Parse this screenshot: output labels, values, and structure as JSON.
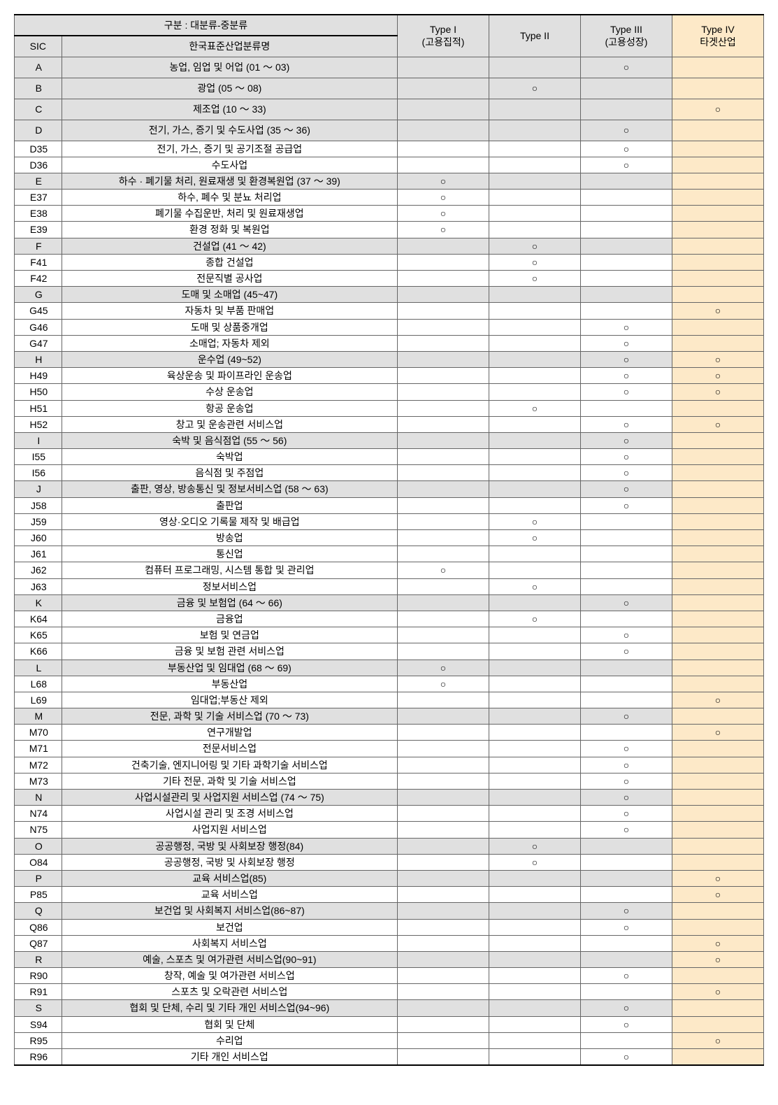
{
  "colors": {
    "header_bg": "#e0e0e0",
    "major_bg": "#e0e0e0",
    "sub_bg": "#ffffff",
    "type4_bg": "#fde9c8",
    "border": "#666666",
    "border_heavy": "#000000",
    "text": "#000000",
    "circle_glyph": "○"
  },
  "typography": {
    "font_family": "Malgun Gothic",
    "header_fontsize": 14,
    "row_fontsize": 14
  },
  "columns": {
    "sic_width": 62,
    "name_width": 440,
    "type_width": 120
  },
  "header": {
    "top_merge": "구분 : 대분류-중분류",
    "sic": "SIC",
    "name": "한국표준산업분류명",
    "t1_a": "Type I",
    "t1_b": "(고용집적)",
    "t2": "Type II",
    "t3_a": "Type III",
    "t3_b": "(고용성장)",
    "t4_a": "Type IV",
    "t4_b": "타겟산업"
  },
  "rows": [
    {
      "sic": "A",
      "name": "농업, 임업 및 어업 (01 ～ 03)",
      "t1": "",
      "t2": "",
      "t3": "○",
      "t4": "",
      "major": true,
      "lg": true
    },
    {
      "sic": "B",
      "name": "광업 (05 ～ 08)",
      "t1": "",
      "t2": "○",
      "t3": "",
      "t4": "",
      "major": true,
      "lg": true
    },
    {
      "sic": "C",
      "name": "제조업 (10 ～ 33)",
      "t1": "",
      "t2": "",
      "t3": "",
      "t4": "○",
      "major": true,
      "lg": true
    },
    {
      "sic": "D",
      "name": "전기, 가스, 증기 및 수도사업 (35 ～ 36)",
      "t1": "",
      "t2": "",
      "t3": "○",
      "t4": "",
      "major": true,
      "lg": true
    },
    {
      "sic": "D35",
      "name": "전기, 가스, 증기 및 공기조절 공급업",
      "t1": "",
      "t2": "",
      "t3": "○",
      "t4": "",
      "major": false
    },
    {
      "sic": "D36",
      "name": "수도사업",
      "t1": "",
      "t2": "",
      "t3": "○",
      "t4": "",
      "major": false
    },
    {
      "sic": "E",
      "name": "하수 · 폐기물 처리, 원료재생 및 환경복원업 (37 ～ 39)",
      "t1": "○",
      "t2": "",
      "t3": "",
      "t4": "",
      "major": true
    },
    {
      "sic": "E37",
      "name": "하수, 폐수 및 분뇨 처리업",
      "t1": "○",
      "t2": "",
      "t3": "",
      "t4": "",
      "major": false
    },
    {
      "sic": "E38",
      "name": "폐기물 수집운반, 처리 및 원료재생업",
      "t1": "○",
      "t2": "",
      "t3": "",
      "t4": "",
      "major": false
    },
    {
      "sic": "E39",
      "name": "환경 정화 및 복원업",
      "t1": "○",
      "t2": "",
      "t3": "",
      "t4": "",
      "major": false
    },
    {
      "sic": "F",
      "name": "건설업 (41 ～ 42)",
      "t1": "",
      "t2": "○",
      "t3": "",
      "t4": "",
      "major": true
    },
    {
      "sic": "F41",
      "name": "종합 건설업",
      "t1": "",
      "t2": "○",
      "t3": "",
      "t4": "",
      "major": false
    },
    {
      "sic": "F42",
      "name": "전문직별 공사업",
      "t1": "",
      "t2": "○",
      "t3": "",
      "t4": "",
      "major": false
    },
    {
      "sic": "G",
      "name": "도매 및 소매업 (45~47)",
      "t1": "",
      "t2": "",
      "t3": "",
      "t4": "",
      "major": true
    },
    {
      "sic": "G45",
      "name": "자동차 및 부품 판매업",
      "t1": "",
      "t2": "",
      "t3": "",
      "t4": "○",
      "major": false
    },
    {
      "sic": "G46",
      "name": "도매 및 상품중개업",
      "t1": "",
      "t2": "",
      "t3": "○",
      "t4": "",
      "major": false
    },
    {
      "sic": "G47",
      "name": "소매업; 자동차 제외",
      "t1": "",
      "t2": "",
      "t3": "○",
      "t4": "",
      "major": false
    },
    {
      "sic": "H",
      "name": "운수업 (49~52)",
      "t1": "",
      "t2": "",
      "t3": "○",
      "t4": "○",
      "major": true
    },
    {
      "sic": "H49",
      "name": "육상운송 및 파이프라인 운송업",
      "t1": "",
      "t2": "",
      "t3": "○",
      "t4": "○",
      "major": false
    },
    {
      "sic": "H50",
      "name": "수상 운송업",
      "t1": "",
      "t2": "",
      "t3": "○",
      "t4": "○",
      "major": false
    },
    {
      "sic": "H51",
      "name": "항공 운송업",
      "t1": "",
      "t2": "○",
      "t3": "",
      "t4": "",
      "major": false
    },
    {
      "sic": "H52",
      "name": "창고 및 운송관련 서비스업",
      "t1": "",
      "t2": "",
      "t3": "○",
      "t4": "○",
      "major": false
    },
    {
      "sic": "I",
      "name": "숙박 및 음식점업 (55 ～ 56)",
      "t1": "",
      "t2": "",
      "t3": "○",
      "t4": "",
      "major": true
    },
    {
      "sic": "I55",
      "name": "숙박업",
      "t1": "",
      "t2": "",
      "t3": "○",
      "t4": "",
      "major": false
    },
    {
      "sic": "I56",
      "name": "음식점 및 주점업",
      "t1": "",
      "t2": "",
      "t3": "○",
      "t4": "",
      "major": false
    },
    {
      "sic": "J",
      "name": "출판, 영상, 방송통신 및 정보서비스업 (58 ～ 63)",
      "t1": "",
      "t2": "",
      "t3": "○",
      "t4": "",
      "major": true
    },
    {
      "sic": "J58",
      "name": "출판업",
      "t1": "",
      "t2": "",
      "t3": "○",
      "t4": "",
      "major": false
    },
    {
      "sic": "J59",
      "name": "영상·오디오 기록물 제작 및 배급업",
      "t1": "",
      "t2": "○",
      "t3": "",
      "t4": "",
      "major": false
    },
    {
      "sic": "J60",
      "name": "방송업",
      "t1": "",
      "t2": "○",
      "t3": "",
      "t4": "",
      "major": false
    },
    {
      "sic": "J61",
      "name": "통신업",
      "t1": "",
      "t2": "",
      "t3": "",
      "t4": "",
      "major": false
    },
    {
      "sic": "J62",
      "name": "컴퓨터 프로그래밍, 시스템 통합 및 관리업",
      "t1": "○",
      "t2": "",
      "t3": "",
      "t4": "",
      "major": false
    },
    {
      "sic": "J63",
      "name": "정보서비스업",
      "t1": "",
      "t2": "○",
      "t3": "",
      "t4": "",
      "major": false
    },
    {
      "sic": "K",
      "name": "금융 및 보험업 (64 ～ 66)",
      "t1": "",
      "t2": "",
      "t3": "○",
      "t4": "",
      "major": true
    },
    {
      "sic": "K64",
      "name": "금융업",
      "t1": "",
      "t2": "○",
      "t3": "",
      "t4": "",
      "major": false
    },
    {
      "sic": "K65",
      "name": "보험 및 연금업",
      "t1": "",
      "t2": "",
      "t3": "○",
      "t4": "",
      "major": false
    },
    {
      "sic": "K66",
      "name": "금융 및 보험 관련 서비스업",
      "t1": "",
      "t2": "",
      "t3": "○",
      "t4": "",
      "major": false
    },
    {
      "sic": "L",
      "name": "부동산업 및 임대업 (68 ～ 69)",
      "t1": "○",
      "t2": "",
      "t3": "",
      "t4": "",
      "major": true
    },
    {
      "sic": "L68",
      "name": "부동산업",
      "t1": "○",
      "t2": "",
      "t3": "",
      "t4": "",
      "major": false
    },
    {
      "sic": "L69",
      "name": "임대업;부동산 제외",
      "t1": "",
      "t2": "",
      "t3": "",
      "t4": "○",
      "major": false
    },
    {
      "sic": "M",
      "name": "전문, 과학 및 기술 서비스업 (70 ～ 73)",
      "t1": "",
      "t2": "",
      "t3": "○",
      "t4": "",
      "major": true
    },
    {
      "sic": "M70",
      "name": "연구개발업",
      "t1": "",
      "t2": "",
      "t3": "",
      "t4": "○",
      "major": false
    },
    {
      "sic": "M71",
      "name": "전문서비스업",
      "t1": "",
      "t2": "",
      "t3": "○",
      "t4": "",
      "major": false
    },
    {
      "sic": "M72",
      "name": "건축기술, 엔지니어링 및 기타 과학기술 서비스업",
      "t1": "",
      "t2": "",
      "t3": "○",
      "t4": "",
      "major": false
    },
    {
      "sic": "M73",
      "name": "기타 전문, 과학 및 기술 서비스업",
      "t1": "",
      "t2": "",
      "t3": "○",
      "t4": "",
      "major": false
    },
    {
      "sic": "N",
      "name": "사업시설관리 및 사업지원 서비스업 (74 ～ 75)",
      "t1": "",
      "t2": "",
      "t3": "○",
      "t4": "",
      "major": true
    },
    {
      "sic": "N74",
      "name": "사업시설 관리 및 조경 서비스업",
      "t1": "",
      "t2": "",
      "t3": "○",
      "t4": "",
      "major": false
    },
    {
      "sic": "N75",
      "name": "사업지원 서비스업",
      "t1": "",
      "t2": "",
      "t3": "○",
      "t4": "",
      "major": false
    },
    {
      "sic": "O",
      "name": "공공행정, 국방 및 사회보장 행정(84)",
      "t1": "",
      "t2": "○",
      "t3": "",
      "t4": "",
      "major": true
    },
    {
      "sic": "O84",
      "name": "공공행정, 국방 및 사회보장 행정",
      "t1": "",
      "t2": "○",
      "t3": "",
      "t4": "",
      "major": false
    },
    {
      "sic": "P",
      "name": "교육 서비스업(85)",
      "t1": "",
      "t2": "",
      "t3": "",
      "t4": "○",
      "major": true
    },
    {
      "sic": "P85",
      "name": "교육 서비스업",
      "t1": "",
      "t2": "",
      "t3": "",
      "t4": "○",
      "major": false
    },
    {
      "sic": "Q",
      "name": "보건업 및 사회복지 서비스업(86~87)",
      "t1": "",
      "t2": "",
      "t3": "○",
      "t4": "",
      "major": true
    },
    {
      "sic": "Q86",
      "name": "보건업",
      "t1": "",
      "t2": "",
      "t3": "○",
      "t4": "",
      "major": false
    },
    {
      "sic": "Q87",
      "name": "사회복지 서비스업",
      "t1": "",
      "t2": "",
      "t3": "",
      "t4": "○",
      "major": false
    },
    {
      "sic": "R",
      "name": "예술, 스포츠 및 여가관련 서비스업(90~91)",
      "t1": "",
      "t2": "",
      "t3": "",
      "t4": "○",
      "major": true
    },
    {
      "sic": "R90",
      "name": "창작, 예술 및 여가관련 서비스업",
      "t1": "",
      "t2": "",
      "t3": "○",
      "t4": "",
      "major": false
    },
    {
      "sic": "R91",
      "name": "스포츠 및 오락관련 서비스업",
      "t1": "",
      "t2": "",
      "t3": "",
      "t4": "○",
      "major": false
    },
    {
      "sic": "S",
      "name": "협회 및 단체, 수리  및 기타 개인 서비스업(94~96)",
      "t1": "",
      "t2": "",
      "t3": "○",
      "t4": "",
      "major": true
    },
    {
      "sic": "S94",
      "name": "협회 및 단체",
      "t1": "",
      "t2": "",
      "t3": "○",
      "t4": "",
      "major": false
    },
    {
      "sic": "R95",
      "name": "수리업",
      "t1": "",
      "t2": "",
      "t3": "",
      "t4": "○",
      "major": false
    },
    {
      "sic": "R96",
      "name": "기타 개인 서비스업",
      "t1": "",
      "t2": "",
      "t3": "○",
      "t4": "",
      "major": false
    }
  ]
}
